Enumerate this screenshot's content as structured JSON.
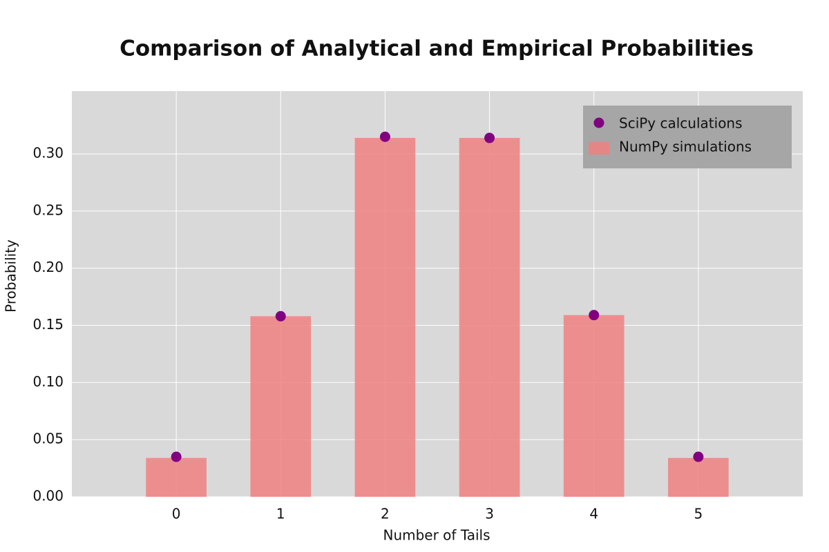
{
  "chart_data": {
    "type": "bar",
    "title": "Comparison of Analytical and Empirical Probabilities",
    "x_label": "Number of Tails",
    "y_label": "Probability",
    "x": [
      0,
      1,
      2,
      3,
      4,
      5
    ],
    "series": [
      {
        "name": "SciPy calculations",
        "type": "scatter",
        "color": "#800080",
        "values": [
          0.035,
          0.158,
          0.315,
          0.314,
          0.159,
          0.035
        ]
      },
      {
        "name": "NumPy simulations",
        "type": "bar",
        "color": "#f08080",
        "values": [
          0.034,
          0.158,
          0.314,
          0.314,
          0.159,
          0.034
        ]
      }
    ],
    "xlim": [
      -1,
      6
    ],
    "xticks": [
      0,
      1,
      2,
      3,
      4,
      5
    ],
    "ylim": [
      0,
      0.355
    ],
    "yticks": [
      {
        "value": 0,
        "label": "0.00"
      },
      {
        "value": 0.05,
        "label": "0.05"
      },
      {
        "value": 0.1,
        "label": "0.10"
      },
      {
        "value": 0.15,
        "label": "0.15"
      },
      {
        "value": 0.2,
        "label": "0.20"
      },
      {
        "value": 0.25,
        "label": "0.25"
      },
      {
        "value": 0.3,
        "label": "0.30"
      }
    ],
    "grid": true,
    "legend": "upper right"
  }
}
